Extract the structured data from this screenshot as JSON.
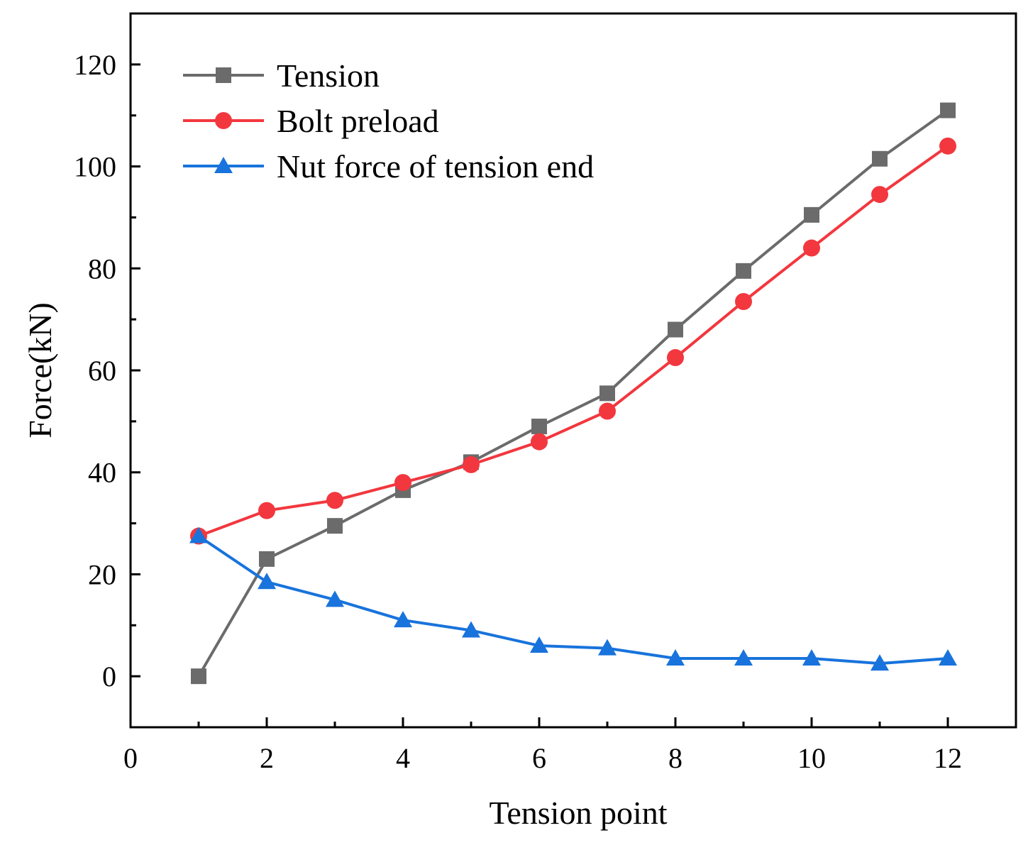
{
  "chart_data": {
    "type": "line",
    "title": "",
    "xlabel": "Tension point",
    "ylabel": "Force(kN)",
    "xlim": [
      0,
      13
    ],
    "ylim": [
      -10,
      130
    ],
    "xticks": [
      0,
      2,
      4,
      6,
      8,
      10,
      12
    ],
    "xtick_labels": [
      "0",
      "2",
      "4",
      "6",
      "8",
      "10",
      "12"
    ],
    "xminor_ticks": [
      1,
      3,
      5,
      7,
      9,
      11
    ],
    "yticks": [
      0,
      20,
      40,
      60,
      80,
      100,
      120
    ],
    "ytick_labels": [
      "0",
      "20",
      "40",
      "60",
      "80",
      "100",
      "120"
    ],
    "yminor_ticks": [
      10,
      30,
      50,
      70,
      90,
      110
    ],
    "grid": false,
    "legend_position": "top-left",
    "x": [
      1,
      2,
      3,
      4,
      5,
      6,
      7,
      8,
      9,
      10,
      11,
      12
    ],
    "series": [
      {
        "name": "Tension",
        "color": "#6b6b6b",
        "marker": "square",
        "values": [
          0,
          23,
          29.5,
          36.5,
          42,
          49,
          55.5,
          68,
          79.5,
          90.5,
          101.5,
          111
        ]
      },
      {
        "name": "Bolt preload",
        "color": "#f2373e",
        "marker": "circle",
        "values": [
          27.5,
          32.5,
          34.5,
          38,
          41.5,
          46,
          52,
          62.5,
          73.5,
          84,
          94.5,
          104
        ]
      },
      {
        "name": "Nut force of tension end",
        "color": "#1873dc",
        "marker": "triangle",
        "values": [
          27.5,
          18.5,
          15,
          11,
          9,
          6,
          5.5,
          3.5,
          3.5,
          3.5,
          2.5,
          3.5
        ]
      }
    ]
  }
}
